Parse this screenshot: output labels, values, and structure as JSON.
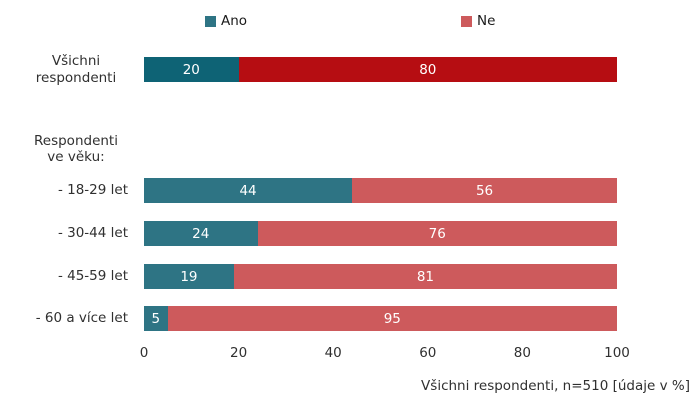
{
  "chart_data": {
    "type": "bar",
    "orientation": "horizontal",
    "stacked": true,
    "title": "",
    "categories": [
      "Všichni respondenti",
      "- 18-29 let",
      "- 30-44 let",
      "- 45-59 let",
      "- 60 a více let"
    ],
    "group_label": "Respondenti ve věku:",
    "series": [
      {
        "name": "Ano",
        "values": [
          20,
          44,
          24,
          19,
          5
        ]
      },
      {
        "name": "Ne",
        "values": [
          80,
          56,
          76,
          81,
          95
        ]
      }
    ],
    "xlim": [
      0,
      100
    ],
    "x_ticks": [
      "0",
      "20",
      "40",
      "60",
      "80",
      "100"
    ],
    "grid": false,
    "legend_position": "top",
    "footnote": "Všichni respondenti, n=510 [údaje v %]",
    "colors": {
      "ano": "#2e7484",
      "ne": "#cd5a5c",
      "ano_emphasis": "#0e6375",
      "ne_emphasis": "#b60d12",
      "value_text": "#ffffff",
      "label_text": "#303030"
    }
  }
}
